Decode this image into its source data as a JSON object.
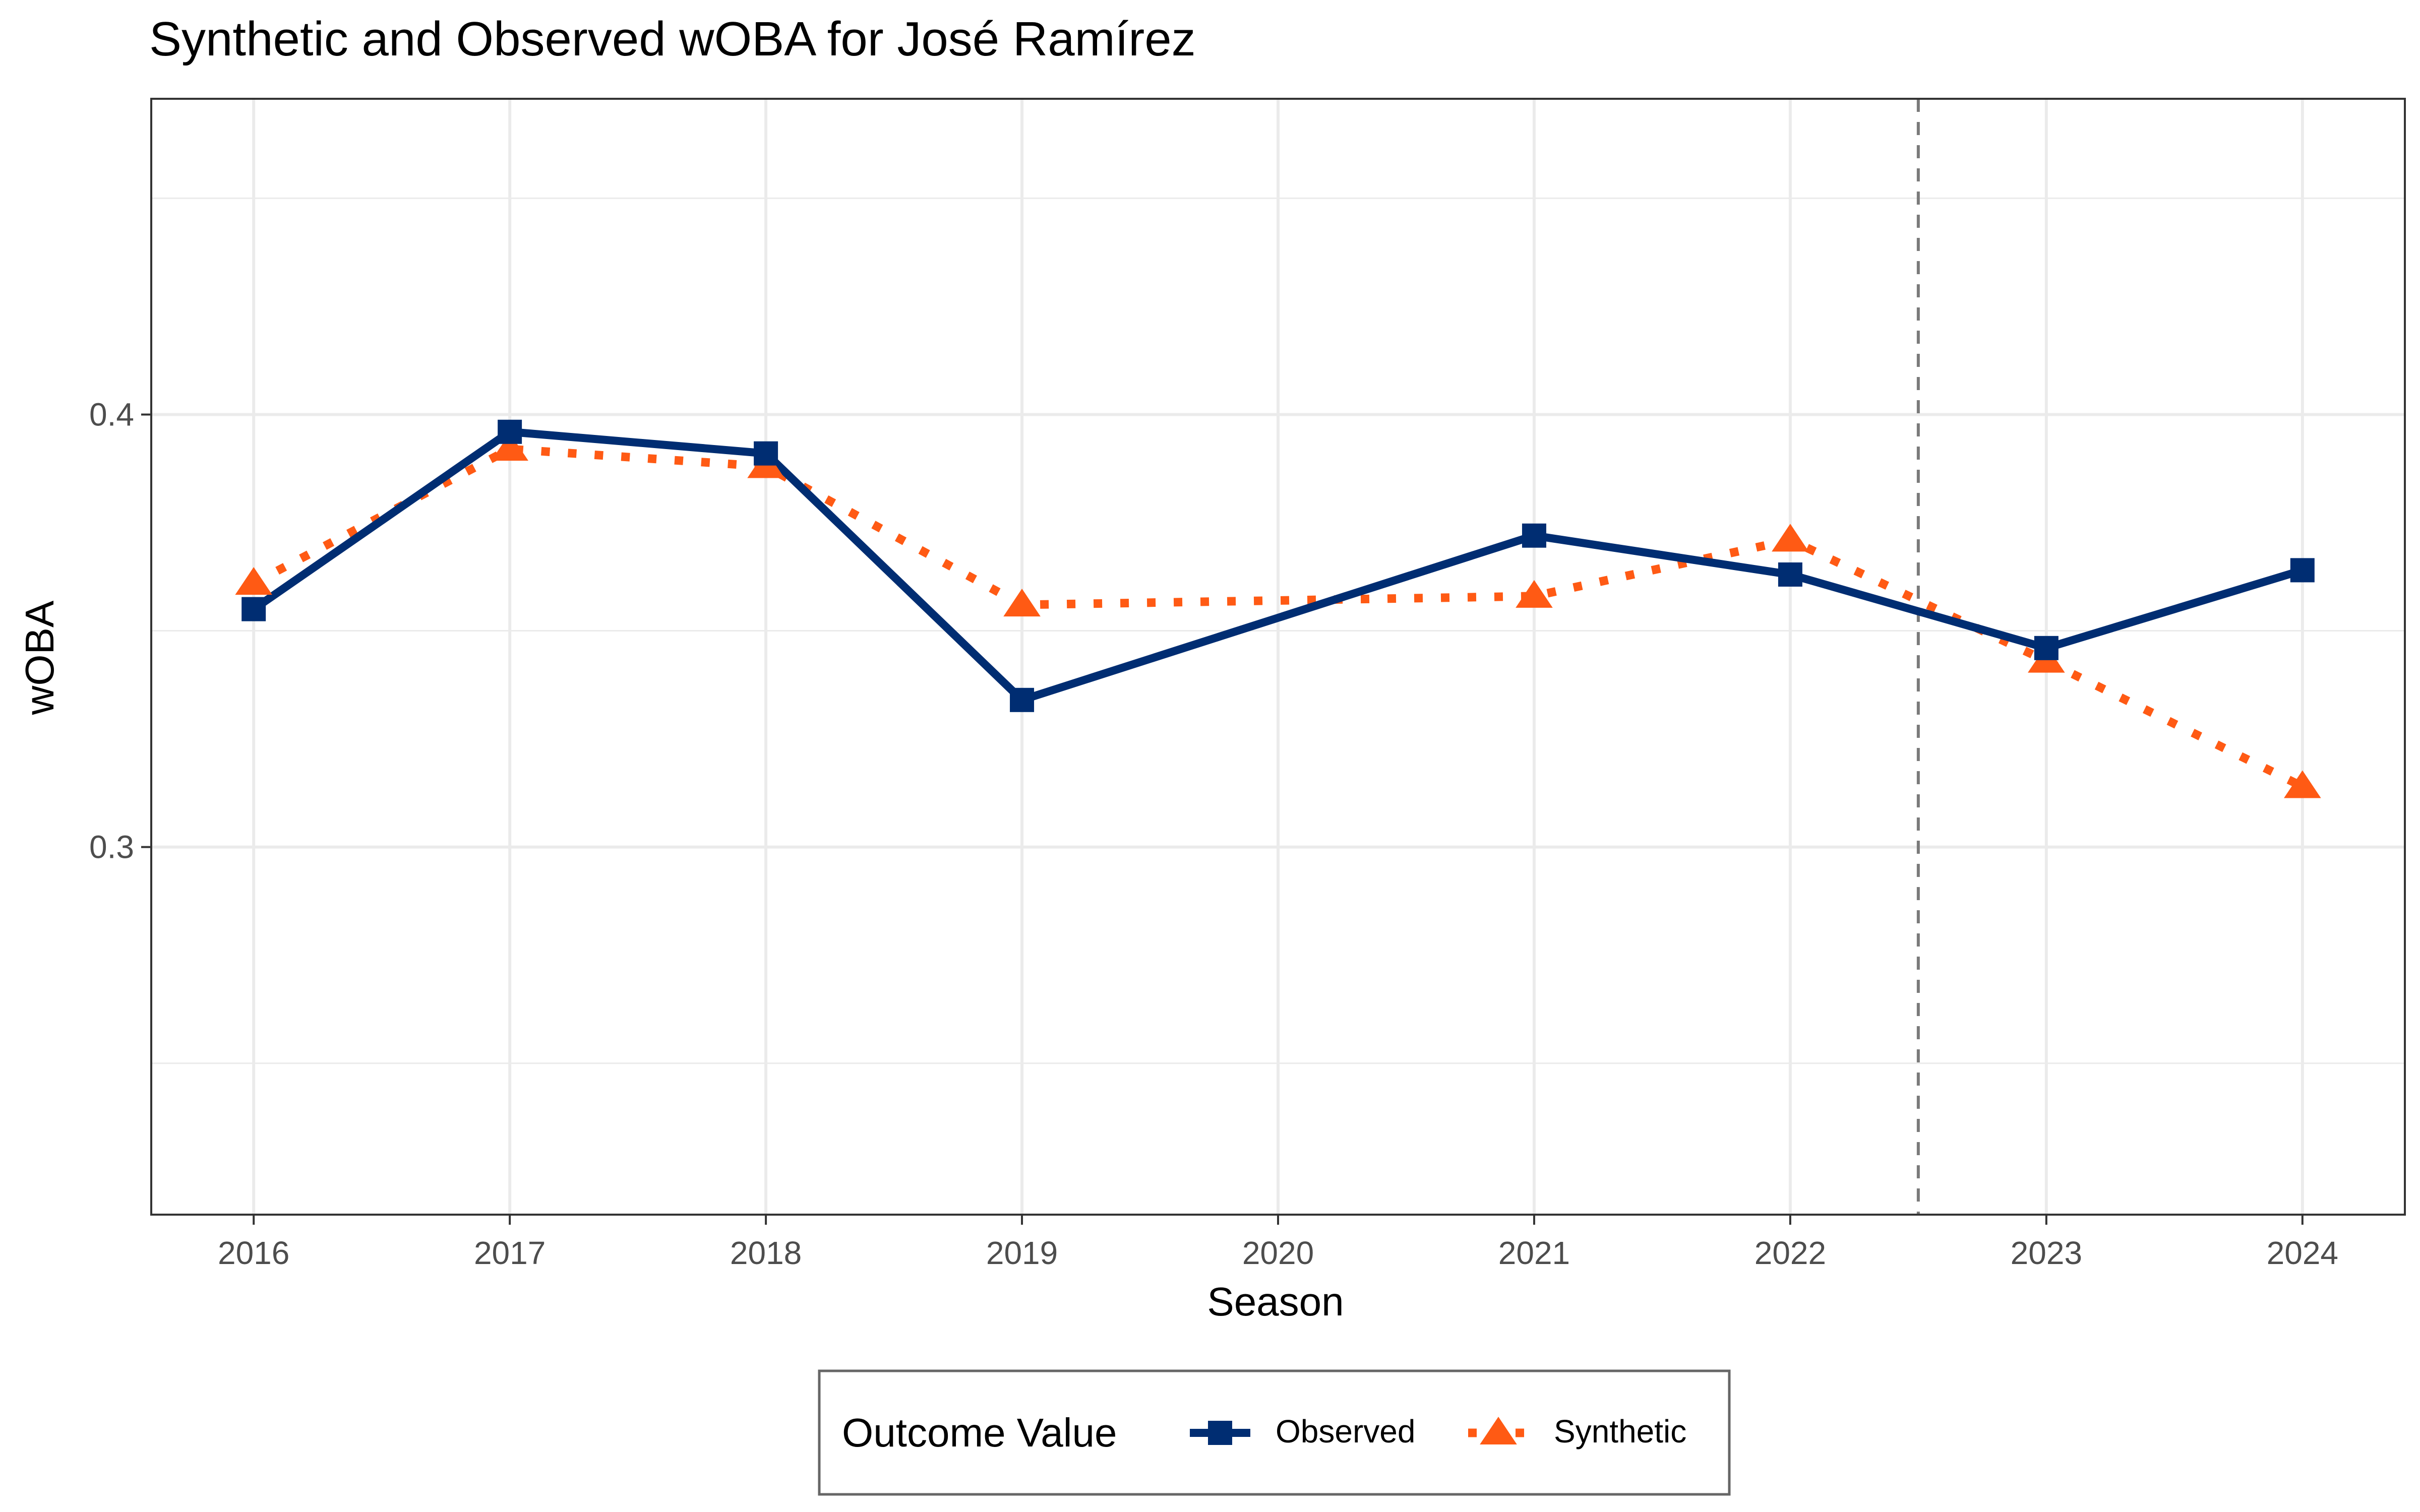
{
  "chart_data": {
    "type": "line",
    "title": "Synthetic and Observed wOBA for José Ramírez",
    "xlabel": "Season",
    "ylabel": "wOBA",
    "x": [
      2016,
      2017,
      2018,
      2019,
      2020,
      2021,
      2022,
      2023,
      2024
    ],
    "x_tick_labels": [
      "2016",
      "2017",
      "2018",
      "2019",
      "2020",
      "2021",
      "2022",
      "2023",
      "2024"
    ],
    "xlim": [
      2015.6,
      2024.4
    ],
    "ylim": [
      0.215,
      0.473
    ],
    "y_major_ticks": [
      0.3,
      0.4
    ],
    "y_tick_labels": [
      "0.3",
      "0.4"
    ],
    "y_minor_ticks": [
      0.25,
      0.35,
      0.45
    ],
    "grid": true,
    "treatment_line_x": 2022.5,
    "legend": {
      "title": "Outcome Value",
      "position": "bottom"
    },
    "series": [
      {
        "name": "Observed",
        "marker": "square",
        "line_style": "solid",
        "color": "#002D72",
        "points": [
          {
            "x": 2016,
            "y": 0.355
          },
          {
            "x": 2017,
            "y": 0.396
          },
          {
            "x": 2018,
            "y": 0.391
          },
          {
            "x": 2019,
            "y": 0.334
          },
          {
            "x": 2021,
            "y": 0.372
          },
          {
            "x": 2022,
            "y": 0.363
          },
          {
            "x": 2023,
            "y": 0.346
          },
          {
            "x": 2024,
            "y": 0.364
          }
        ]
      },
      {
        "name": "Synthetic",
        "marker": "triangle",
        "line_style": "dotted",
        "color": "#FF5A14",
        "points": [
          {
            "x": 2016,
            "y": 0.361
          },
          {
            "x": 2017,
            "y": 0.392
          },
          {
            "x": 2018,
            "y": 0.388
          },
          {
            "x": 2019,
            "y": 0.356
          },
          {
            "x": 2021,
            "y": 0.358
          },
          {
            "x": 2022,
            "y": 0.371
          },
          {
            "x": 2023,
            "y": 0.343
          },
          {
            "x": 2024,
            "y": 0.314
          }
        ]
      }
    ]
  }
}
